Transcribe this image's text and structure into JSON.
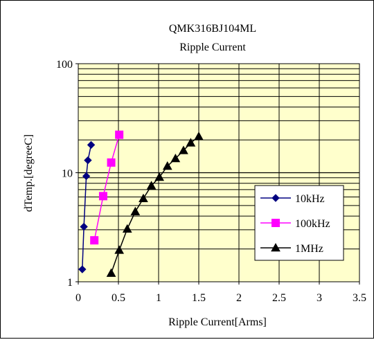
{
  "chart_data": {
    "type": "scatter",
    "title": "QMK316BJ104ML",
    "subtitle": "Ripple Current",
    "xlabel": "Ripple Current[Arms]",
    "ylabel": "dTemp.[degreeC]",
    "x_ticks": [
      "0",
      "0.5",
      "1",
      "1.5",
      "2",
      "2.5",
      "3",
      "3.5"
    ],
    "y_ticks": [
      "1",
      "10",
      "100"
    ],
    "xlim": [
      0,
      3.5
    ],
    "ylim": [
      1,
      100
    ],
    "y_scale": "log",
    "grid": true,
    "legend_position": "right",
    "colors": {
      "plot_background": "#FFFFCC",
      "grid": "#000000",
      "page_background": "#FFFFFF"
    },
    "series": [
      {
        "name": "10kHz",
        "color": "#000080",
        "marker": "diamond",
        "x": [
          0.05,
          0.07,
          0.1,
          0.12,
          0.16
        ],
        "y": [
          1.3,
          3.2,
          9.3,
          13.0,
          18.0
        ]
      },
      {
        "name": "100kHz",
        "color": "#FF00FF",
        "marker": "square",
        "x": [
          0.2,
          0.31,
          0.41,
          0.51
        ],
        "y": [
          2.4,
          6.1,
          12.4,
          22.3
        ]
      },
      {
        "name": "1MHz",
        "color": "#000000",
        "marker": "triangle",
        "x": [
          0.41,
          0.51,
          0.61,
          0.71,
          0.81,
          0.91,
          1.01,
          1.11,
          1.21,
          1.31,
          1.4,
          1.5
        ],
        "y": [
          1.2,
          1.95,
          3.05,
          4.4,
          5.8,
          7.6,
          9.1,
          11.5,
          13.5,
          16.0,
          18.8,
          21.5
        ]
      }
    ]
  }
}
